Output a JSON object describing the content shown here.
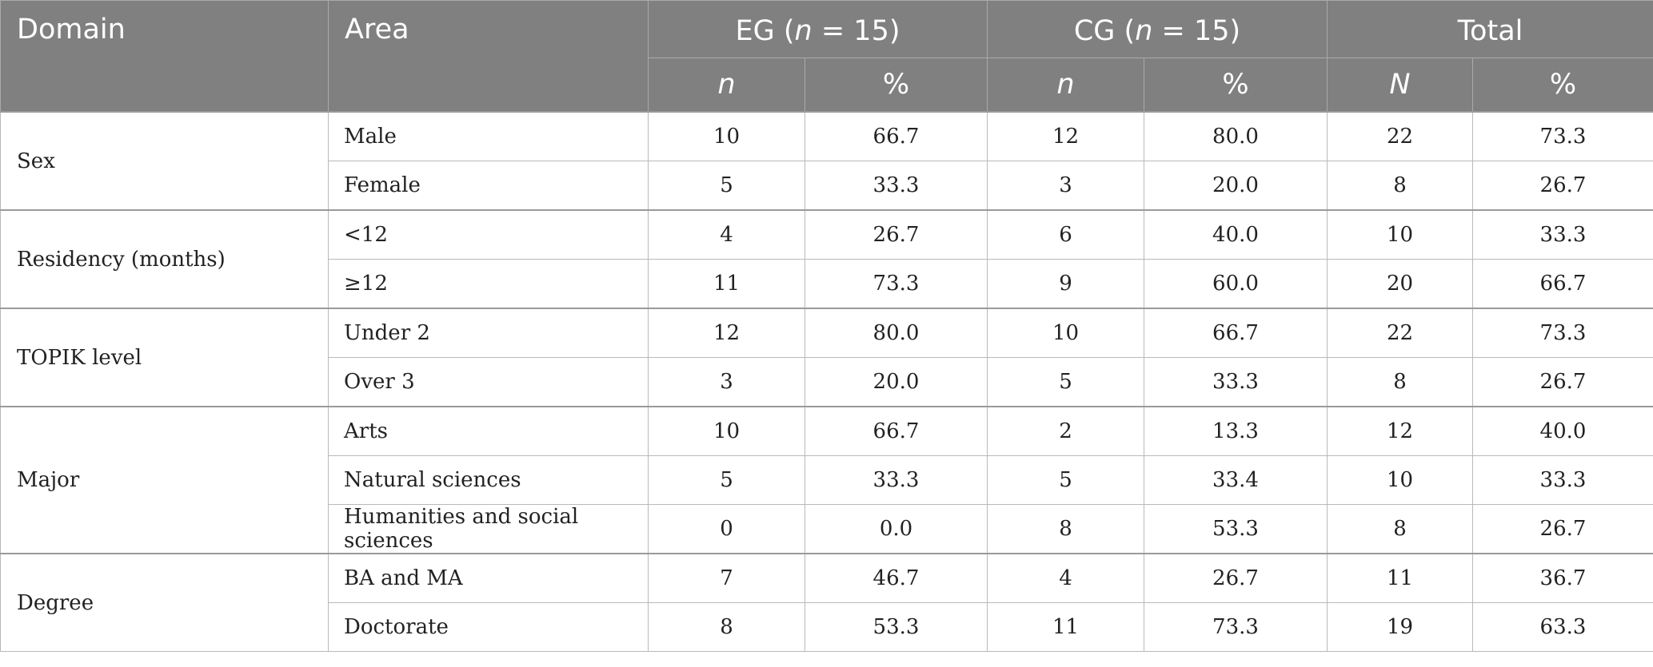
{
  "header": {
    "domain": "Domain",
    "area": "Area",
    "eg_name": "EG (",
    "eg_n": "n",
    "eg_rest": " = 15)",
    "cg_name": "CG (",
    "cg_n": "n",
    "cg_rest": " = 15)",
    "total": "Total",
    "sub": [
      "n",
      "%",
      "n",
      "%",
      "N",
      "%"
    ]
  },
  "groups": [
    {
      "domain": "Sex",
      "rows": [
        {
          "area": "Male",
          "values": [
            "10",
            "66.7",
            "12",
            "80.0",
            "22",
            "73.3"
          ]
        },
        {
          "area": "Female",
          "values": [
            "5",
            "33.3",
            "3",
            "20.0",
            "8",
            "26.7"
          ]
        }
      ]
    },
    {
      "domain": "Residency (months)",
      "rows": [
        {
          "area": "<12",
          "values": [
            "4",
            "26.7",
            "6",
            "40.0",
            "10",
            "33.3"
          ]
        },
        {
          "area": "≥12",
          "values": [
            "11",
            "73.3",
            "9",
            "60.0",
            "20",
            "66.7"
          ]
        }
      ]
    },
    {
      "domain": "TOPIK level",
      "rows": [
        {
          "area": "Under 2",
          "values": [
            "12",
            "80.0",
            "10",
            "66.7",
            "22",
            "73.3"
          ]
        },
        {
          "area": "Over 3",
          "values": [
            "3",
            "20.0",
            "5",
            "33.3",
            "8",
            "26.7"
          ]
        }
      ]
    },
    {
      "domain": "Major",
      "rows": [
        {
          "area": "Arts",
          "values": [
            "10",
            "66.7",
            "2",
            "13.3",
            "12",
            "40.0"
          ]
        },
        {
          "area": "Natural sciences",
          "values": [
            "5",
            "33.3",
            "5",
            "33.4",
            "10",
            "33.3"
          ]
        },
        {
          "area": "Humanities and social sciences",
          "values": [
            "0",
            "0.0",
            "8",
            "53.3",
            "8",
            "26.7"
          ]
        }
      ]
    },
    {
      "domain": "Degree",
      "rows": [
        {
          "area": "BA and MA",
          "values": [
            "7",
            "46.7",
            "4",
            "26.7",
            "11",
            "36.7"
          ]
        },
        {
          "area": "Doctorate",
          "values": [
            "8",
            "53.3",
            "11",
            "73.3",
            "19",
            "63.3"
          ]
        }
      ]
    }
  ]
}
